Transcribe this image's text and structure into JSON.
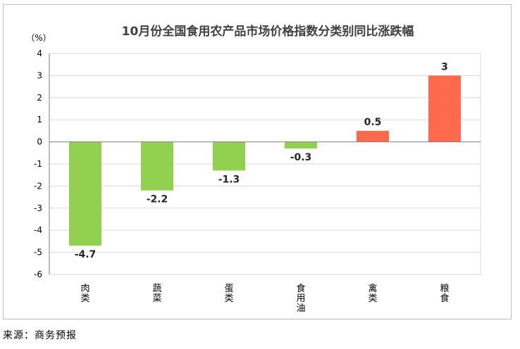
{
  "chart_data": {
    "type": "bar",
    "title": "10月份全国食用农产品市场价格指数分类别同比涨跌幅",
    "unit_label": "（%）",
    "categories": [
      "肉类",
      "蔬菜",
      "蛋类",
      "食用油",
      "禽类",
      "粮食"
    ],
    "values": [
      -4.7,
      -2.2,
      -1.3,
      -0.3,
      0.5,
      3
    ],
    "value_labels": [
      "-4.7",
      "-2.2",
      "-1.3",
      "-0.3",
      "0.5",
      "3"
    ],
    "ylim": [
      -6,
      4
    ],
    "yticks": [
      4,
      3,
      2,
      1,
      0,
      -1,
      -2,
      -3,
      -4,
      -5,
      -6
    ],
    "grid": true,
    "legend": "none",
    "colors": {
      "negative": "#92d050",
      "positive": "#ff6a4d",
      "grid": "#d9d9d9",
      "axis": "#7f7f7f"
    }
  },
  "source": "来源：商务预报"
}
